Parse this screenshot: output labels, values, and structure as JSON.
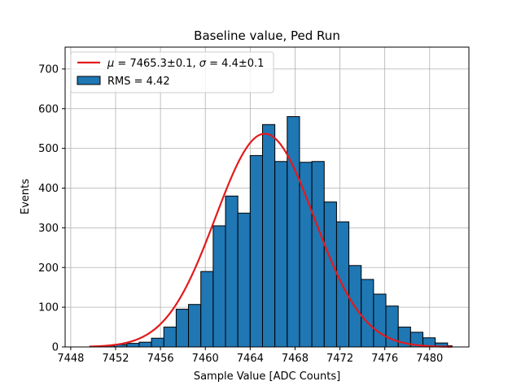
{
  "chart_data": {
    "type": "bar",
    "title": "Baseline value, Ped Run",
    "xlabel": "Sample Value [ADC Counts]",
    "ylabel": "Events",
    "xlim": [
      7447.5,
      7483.5
    ],
    "ylim": [
      0,
      755
    ],
    "x_ticks": [
      7448,
      7452,
      7456,
      7460,
      7464,
      7468,
      7472,
      7476,
      7480
    ],
    "y_ticks": [
      0,
      100,
      200,
      300,
      400,
      500,
      600,
      700
    ],
    "grid": true,
    "legend_position": "top-left",
    "bar_color": "#1f77b4",
    "fit_color": "#e41a1c",
    "bin_edges": [
      7449.7,
      7450.8,
      7451.9,
      7453.0,
      7454.1,
      7455.2,
      7456.3,
      7457.4,
      7458.5,
      7459.6,
      7460.7,
      7461.8,
      7462.9,
      7464.0,
      7465.1,
      7466.2,
      7467.3,
      7468.4,
      7469.5,
      7470.6,
      7471.7,
      7472.8,
      7473.9,
      7475.0,
      7476.1,
      7477.2,
      7478.3,
      7479.4,
      7480.5,
      7481.6,
      7482.0
    ],
    "counts": [
      2,
      3,
      6,
      9,
      12,
      22,
      50,
      95,
      107,
      190,
      305,
      380,
      337,
      482,
      560,
      467,
      580,
      465,
      467,
      365,
      315,
      205,
      170,
      133,
      103,
      50,
      37,
      23,
      10,
      3
    ],
    "series": [
      {
        "name": "$\\mu = 7465.3\\pm0.1$, $\\sigma = 4.4\\pm0.1$",
        "type": "line",
        "mu": 7465.3,
        "sigma": 4.4,
        "amplitude": 537,
        "x_range": [
          7449.7,
          7482.0
        ]
      },
      {
        "name": "RMS = 4.42",
        "type": "bar"
      }
    ]
  },
  "legend": {
    "fit_mu_symbol": "μ",
    "fit_mu_value": " = 7465.3±0.1, ",
    "fit_sigma_symbol": "σ",
    "fit_sigma_value": " = 4.4±0.1",
    "hist_label": "RMS = 4.42"
  }
}
